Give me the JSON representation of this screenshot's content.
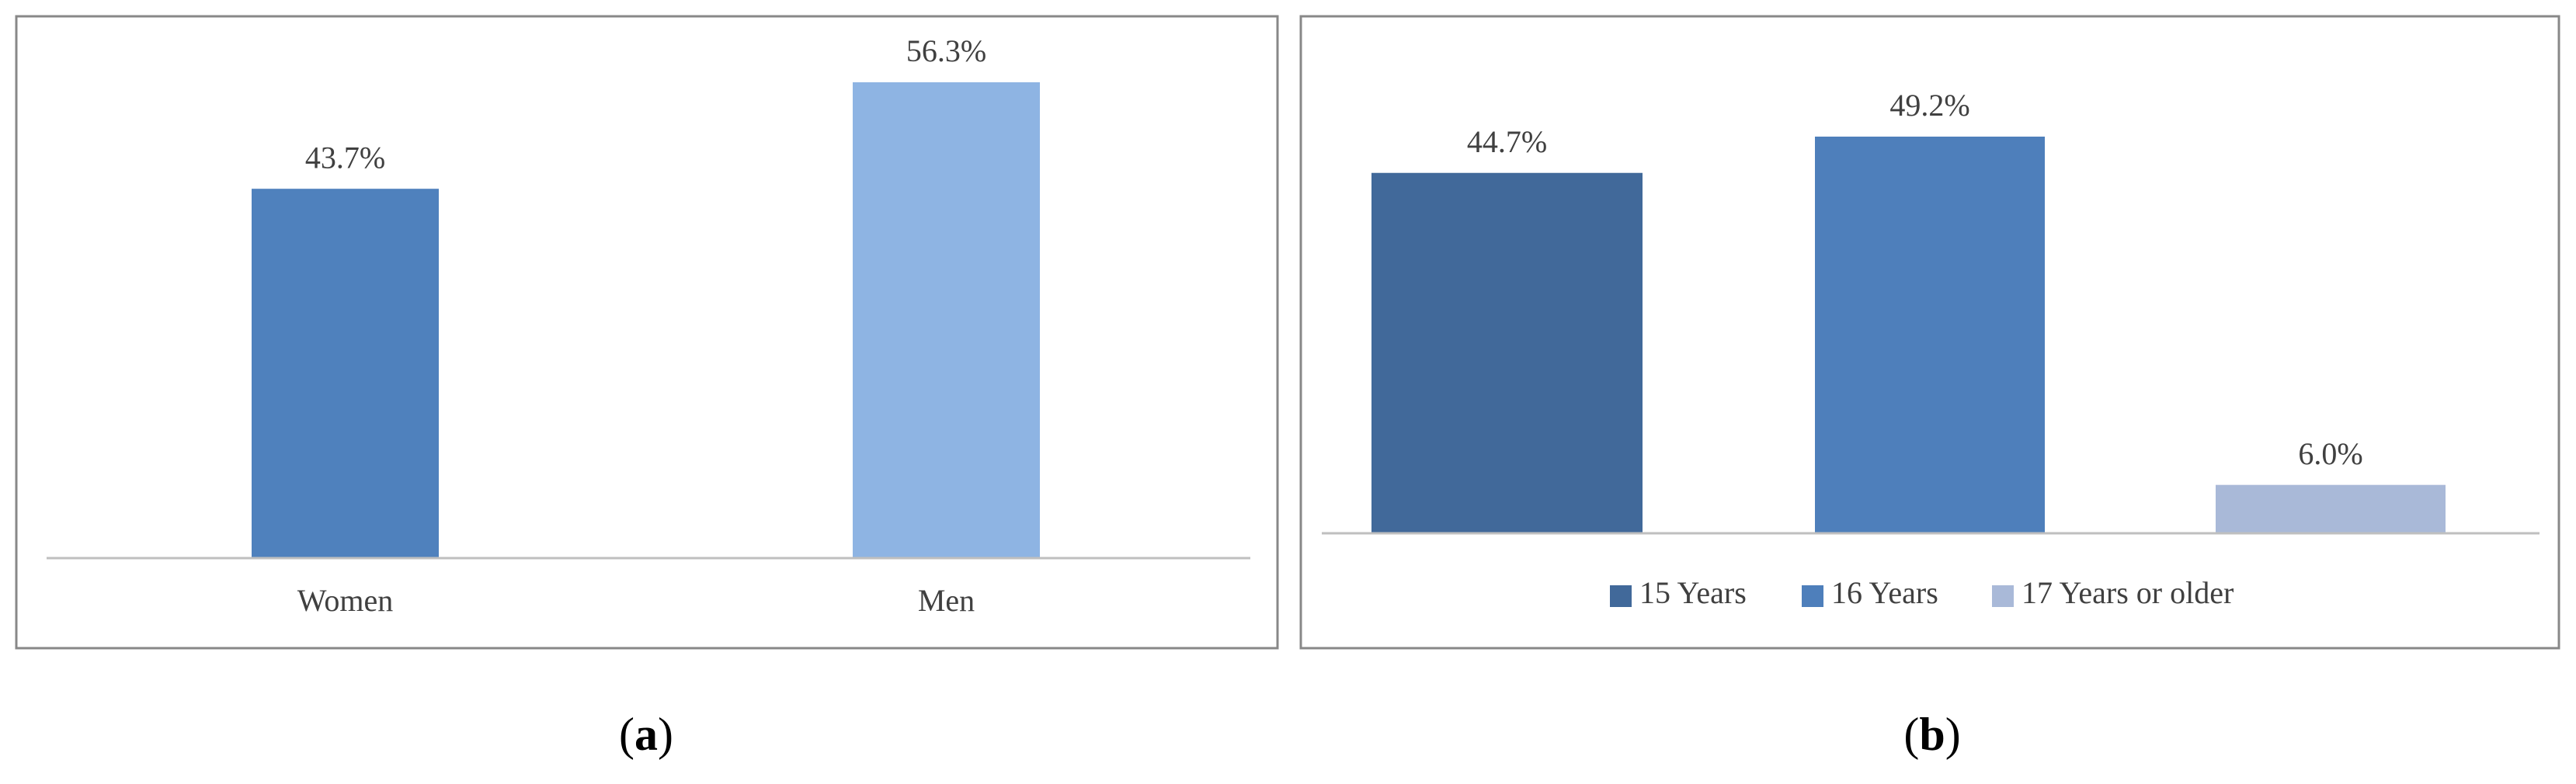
{
  "chart_data": [
    {
      "type": "bar",
      "panel_label": "(a)",
      "categories": [
        "Women",
        "Men"
      ],
      "values": [
        43.7,
        56.3
      ],
      "value_labels": [
        "43.7%",
        "56.3%"
      ],
      "colors": [
        "#4f81bd",
        "#8eb4e3"
      ],
      "legend": false
    },
    {
      "type": "bar",
      "panel_label": "(b)",
      "categories": [
        "15 Years",
        "16 Years",
        "17 Years or older"
      ],
      "values": [
        44.7,
        49.2,
        6.0
      ],
      "value_labels": [
        "44.7%",
        "49.2%",
        "6.0%"
      ],
      "colors": [
        "#41699a",
        "#4e7fbb",
        "#a9b9d8"
      ],
      "legend": true
    }
  ]
}
